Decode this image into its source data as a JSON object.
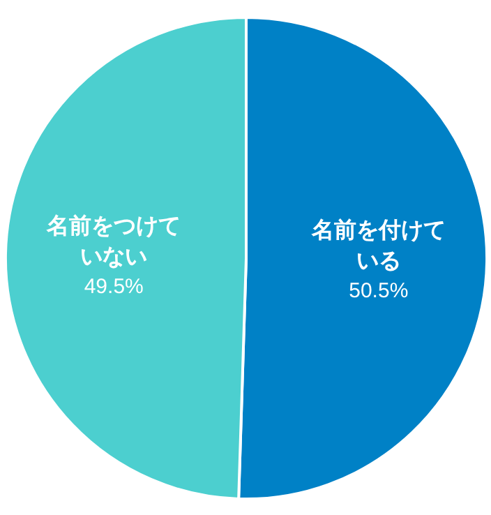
{
  "chart_data": {
    "type": "pie",
    "categories": [
      "名前を付けている",
      "名前をつけていない"
    ],
    "values": [
      50.5,
      49.5
    ],
    "colors": [
      "#0081c6",
      "#4ccfcf"
    ],
    "value_labels": [
      "50.5%",
      "49.5%"
    ]
  }
}
